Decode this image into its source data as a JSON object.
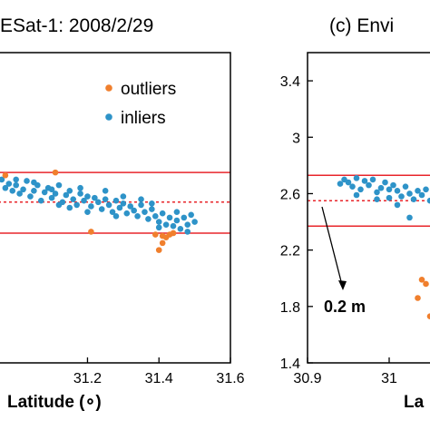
{
  "colors": {
    "outliers": "#F07F2D",
    "inliers": "#2E93C8",
    "ref_line": "#E8262B",
    "axis": "#000000"
  },
  "chart_data": [
    {
      "type": "scatter",
      "panel": "left",
      "title": "ESat-1: 2008/2/29",
      "xlabel": "Latitude (∘)",
      "ylabel": "",
      "xlim": [
        30.95,
        31.6
      ],
      "ylim": [
        1.4,
        3.6
      ],
      "x_ticks": [
        31.2,
        31.4,
        31.6
      ],
      "x_tick_labels": [
        "31.2",
        "31.4",
        "31.6"
      ],
      "legend": {
        "placement": "top-right",
        "entries": [
          "outliers",
          "inliers"
        ]
      },
      "horizontal_lines": [
        {
          "y": 2.75,
          "style": "solid"
        },
        {
          "y": 2.54,
          "style": "dotted"
        },
        {
          "y": 2.32,
          "style": "solid"
        }
      ],
      "series": [
        {
          "name": "outliers",
          "points": [
            [
              30.97,
              2.73
            ],
            [
              31.11,
              2.75
            ],
            [
              31.21,
              2.33
            ],
            [
              31.39,
              2.31
            ],
            [
              31.41,
              2.3
            ],
            [
              31.42,
              2.29
            ],
            [
              31.43,
              2.31
            ],
            [
              31.44,
              2.32
            ],
            [
              31.41,
              2.25
            ],
            [
              31.4,
              2.2
            ]
          ]
        },
        {
          "name": "inliers",
          "points": [
            [
              30.96,
              2.7
            ],
            [
              30.97,
              2.64
            ],
            [
              30.98,
              2.67
            ],
            [
              30.99,
              2.62
            ],
            [
              31.0,
              2.66
            ],
            [
              31.01,
              2.6
            ],
            [
              31.02,
              2.63
            ],
            [
              31.03,
              2.69
            ],
            [
              31.04,
              2.58
            ],
            [
              31.05,
              2.62
            ],
            [
              31.06,
              2.66
            ],
            [
              31.07,
              2.55
            ],
            [
              31.08,
              2.61
            ],
            [
              31.09,
              2.64
            ],
            [
              31.1,
              2.57
            ],
            [
              31.11,
              2.6
            ],
            [
              31.12,
              2.66
            ],
            [
              31.13,
              2.54
            ],
            [
              31.14,
              2.59
            ],
            [
              31.15,
              2.62
            ],
            [
              31.16,
              2.56
            ],
            [
              31.17,
              2.52
            ],
            [
              31.18,
              2.6
            ],
            [
              31.19,
              2.55
            ],
            [
              31.2,
              2.58
            ],
            [
              31.21,
              2.51
            ],
            [
              31.22,
              2.57
            ],
            [
              31.23,
              2.54
            ],
            [
              31.24,
              2.49
            ],
            [
              31.25,
              2.56
            ],
            [
              31.26,
              2.52
            ],
            [
              31.27,
              2.47
            ],
            [
              31.28,
              2.55
            ],
            [
              31.29,
              2.5
            ],
            [
              31.3,
              2.53
            ],
            [
              31.31,
              2.46
            ],
            [
              31.32,
              2.51
            ],
            [
              31.33,
              2.48
            ],
            [
              31.34,
              2.44
            ],
            [
              31.35,
              2.52
            ],
            [
              31.36,
              2.47
            ],
            [
              31.37,
              2.42
            ],
            [
              31.38,
              2.49
            ],
            [
              31.39,
              2.44
            ],
            [
              31.4,
              2.4
            ],
            [
              31.41,
              2.46
            ],
            [
              31.42,
              2.38
            ],
            [
              31.43,
              2.43
            ],
            [
              31.44,
              2.37
            ],
            [
              31.45,
              2.41
            ],
            [
              31.46,
              2.35
            ],
            [
              31.47,
              2.43
            ],
            [
              31.48,
              2.38
            ],
            [
              31.49,
              2.45
            ],
            [
              31.5,
              2.4
            ],
            [
              31.0,
              2.7
            ],
            [
              31.05,
              2.68
            ],
            [
              31.1,
              2.63
            ],
            [
              31.15,
              2.5
            ],
            [
              31.2,
              2.47
            ],
            [
              31.25,
              2.62
            ],
            [
              31.3,
              2.58
            ],
            [
              31.35,
              2.56
            ],
            [
              31.4,
              2.36
            ],
            [
              31.45,
              2.47
            ],
            [
              31.12,
              2.52
            ],
            [
              31.18,
              2.64
            ],
            [
              31.28,
              2.44
            ],
            [
              31.38,
              2.53
            ],
            [
              31.48,
              2.33
            ]
          ]
        }
      ]
    },
    {
      "type": "scatter",
      "panel": "right",
      "title": "(c)  Envi",
      "xlabel": "La",
      "ylabel": "",
      "xlim": [
        30.9,
        31.05
      ],
      "ylim": [
        1.4,
        3.6
      ],
      "x_ticks": [
        30.9,
        31.0
      ],
      "x_tick_labels": [
        "30.9",
        "31"
      ],
      "y_ticks": [
        1.4,
        1.8,
        2.2,
        2.6,
        3.0,
        3.4
      ],
      "y_tick_labels": [
        "1.4",
        "1.8",
        "2.2",
        "2.6",
        "3",
        "3.4"
      ],
      "annotation": "0.2 m",
      "horizontal_lines": [
        {
          "y": 2.73,
          "style": "solid"
        },
        {
          "y": 2.55,
          "style": "dotted"
        },
        {
          "y": 2.37,
          "style": "solid"
        }
      ],
      "series": [
        {
          "name": "outliers",
          "points": [
            [
              31.04,
              1.99
            ],
            [
              31.045,
              1.96
            ],
            [
              31.05,
              1.73
            ],
            [
              31.035,
              1.86
            ]
          ]
        },
        {
          "name": "inliers",
          "points": [
            [
              30.94,
              2.67
            ],
            [
              30.945,
              2.7
            ],
            [
              30.95,
              2.68
            ],
            [
              30.955,
              2.65
            ],
            [
              30.96,
              2.71
            ],
            [
              30.965,
              2.63
            ],
            [
              30.97,
              2.69
            ],
            [
              30.975,
              2.66
            ],
            [
              30.98,
              2.7
            ],
            [
              30.985,
              2.61
            ],
            [
              30.99,
              2.64
            ],
            [
              30.995,
              2.68
            ],
            [
              31.0,
              2.57
            ],
            [
              31.005,
              2.66
            ],
            [
              31.01,
              2.62
            ],
            [
              31.015,
              2.58
            ],
            [
              31.02,
              2.65
            ],
            [
              31.025,
              2.6
            ],
            [
              31.03,
              2.56
            ],
            [
              31.035,
              2.62
            ],
            [
              31.04,
              2.59
            ],
            [
              31.045,
              2.63
            ],
            [
              31.05,
              2.55
            ],
            [
              30.96,
              2.59
            ],
            [
              30.985,
              2.56
            ],
            [
              31.0,
              2.63
            ],
            [
              31.01,
              2.52
            ],
            [
              31.025,
              2.43
            ]
          ]
        }
      ]
    }
  ]
}
